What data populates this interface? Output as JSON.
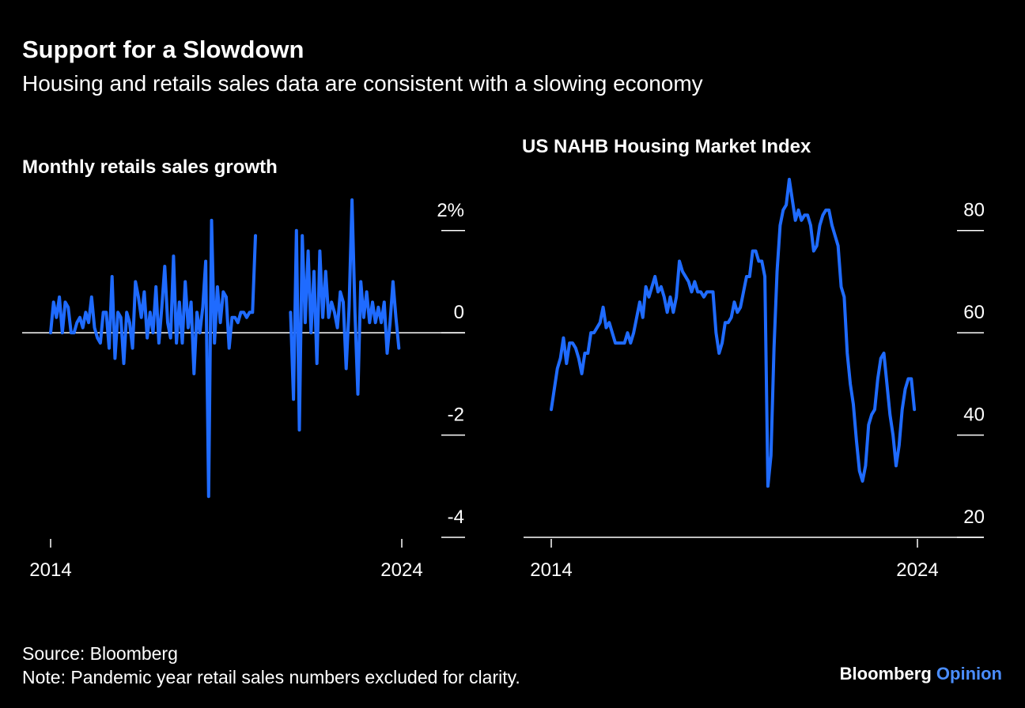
{
  "title": "Support for a Slowdown",
  "subtitle": "Housing and retails sales data are consistent with a slowing economy",
  "chart_data": [
    {
      "type": "line",
      "title": "Monthly retails sales growth",
      "color": "#1f6bff",
      "categories": [
        "2014",
        null,
        null,
        null,
        null,
        null,
        null,
        null,
        null,
        null,
        null,
        null,
        null,
        null,
        null,
        null,
        null,
        null,
        null,
        null,
        null,
        null,
        null,
        null,
        null,
        null,
        null,
        null,
        null,
        null,
        null,
        null,
        null,
        null,
        null,
        null,
        null,
        null,
        null,
        null,
        null,
        null,
        null,
        null,
        null,
        null,
        null,
        null,
        null,
        null,
        null,
        null,
        null,
        null,
        null,
        null,
        null,
        null,
        null,
        null,
        null,
        null,
        null,
        null,
        null,
        null,
        null,
        null,
        null,
        null,
        null,
        null,
        null,
        null,
        null,
        null,
        null,
        null,
        null,
        null,
        null,
        null,
        null,
        null,
        null,
        null,
        null,
        null,
        null,
        null,
        null,
        null,
        null,
        null,
        null,
        null,
        null,
        null,
        null,
        null,
        null,
        null,
        null,
        null,
        null,
        null,
        null,
        null,
        null,
        null,
        null,
        null,
        null,
        null,
        null,
        null,
        null,
        null,
        null,
        null,
        "2024"
      ],
      "values": [
        0,
        0.6,
        0.3,
        0.7,
        0,
        0.6,
        0.5,
        0,
        0,
        0.2,
        0.3,
        0.1,
        0.4,
        0.2,
        0.7,
        0.1,
        -0.1,
        -0.2,
        0.4,
        0.4,
        -0.3,
        1.1,
        -0.5,
        0.4,
        0.3,
        -0.6,
        0.4,
        0.2,
        -0.3,
        1,
        0.7,
        0.3,
        0.8,
        -0.1,
        0.4,
        0,
        0.9,
        -0.2,
        0.5,
        1.3,
        0.2,
        -0.1,
        1.5,
        -0.2,
        0.6,
        -0.2,
        1,
        0.1,
        0.6,
        -0.8,
        0.4,
        0,
        0.5,
        1.4,
        -3.2,
        2.2,
        -0.2,
        0.9,
        0.2,
        0.8,
        0.7,
        -0.3,
        0.3,
        0.3,
        0.2,
        0.4,
        0.4,
        0.3,
        0.4,
        0.4,
        1.9,
        null,
        null,
        null,
        null,
        null,
        null,
        null,
        null,
        null,
        null,
        null,
        0.4,
        -1.3,
        2,
        -1.9,
        1.9,
        0.2,
        1.6,
        0,
        1.2,
        -0.6,
        1.6,
        0.3,
        1.2,
        0.3,
        0.6,
        0.4,
        0.1,
        0.8,
        0.6,
        -0.7,
        0.5,
        2.6,
        0.4,
        -1.2,
        1,
        0.3,
        0.8,
        0.2,
        0.6,
        0.2,
        0.5,
        0.2,
        0.6,
        -0.4,
        0.2,
        1,
        0.3,
        -0.3,
        null
      ],
      "ylim": [
        -4,
        2.8
      ],
      "yticks": [
        {
          "value": 2,
          "label": "2%"
        },
        0,
        -2,
        -4
      ]
    },
    {
      "type": "line",
      "title": "US NAHB Housing Market Index",
      "color": "#1f6bff",
      "categories": [
        "2014",
        null,
        null,
        null,
        null,
        null,
        null,
        null,
        null,
        null,
        null,
        null,
        null,
        null,
        null,
        null,
        null,
        null,
        null,
        null,
        null,
        null,
        null,
        null,
        null,
        null,
        null,
        null,
        null,
        null,
        null,
        null,
        null,
        null,
        null,
        null,
        null,
        null,
        null,
        null,
        null,
        null,
        null,
        null,
        null,
        null,
        null,
        null,
        null,
        null,
        null,
        null,
        null,
        null,
        null,
        null,
        null,
        null,
        null,
        null,
        null,
        null,
        null,
        null,
        null,
        null,
        null,
        null,
        null,
        null,
        null,
        null,
        null,
        null,
        null,
        null,
        null,
        null,
        null,
        null,
        null,
        null,
        null,
        null,
        null,
        null,
        null,
        null,
        null,
        null,
        null,
        null,
        null,
        null,
        null,
        null,
        null,
        null,
        null,
        null,
        null,
        null,
        null,
        null,
        null,
        null,
        null,
        null,
        null,
        null,
        null,
        null,
        null,
        null,
        null,
        null,
        null,
        null,
        null,
        null,
        "2024"
      ],
      "values": [
        45,
        49,
        53,
        55,
        59,
        54,
        58,
        58,
        57,
        55,
        52,
        56,
        56,
        60,
        60,
        61,
        62,
        65,
        61,
        62,
        60,
        58,
        58,
        58,
        58,
        60,
        58,
        60,
        63,
        66,
        63,
        69,
        67,
        69,
        71,
        68,
        69,
        67,
        64,
        67,
        64,
        67,
        74,
        72,
        71,
        70,
        68,
        70,
        68,
        68,
        67,
        68,
        68,
        68,
        60,
        56,
        58,
        62,
        62,
        63,
        66,
        64,
        65,
        68,
        71,
        71,
        76,
        76,
        74,
        74,
        71,
        30,
        36,
        57,
        72,
        81,
        84,
        85,
        90,
        86,
        82,
        84,
        82,
        83,
        83,
        81,
        76,
        77,
        81,
        83,
        84,
        84,
        81,
        79,
        77,
        69,
        67,
        56,
        50,
        46,
        39,
        33,
        31,
        34,
        42,
        44,
        45,
        51,
        55,
        56,
        50,
        44,
        40,
        34,
        38,
        45,
        49,
        51,
        51,
        45,
        null
      ],
      "ylim": [
        20,
        90
      ],
      "yticks": [
        20,
        40,
        60,
        80
      ]
    }
  ],
  "source": "Source: Bloomberg",
  "note": "Note: Pandemic year retail sales numbers excluded for clarity.",
  "brand": {
    "name": "Bloomberg",
    "tag": "Opinion"
  }
}
